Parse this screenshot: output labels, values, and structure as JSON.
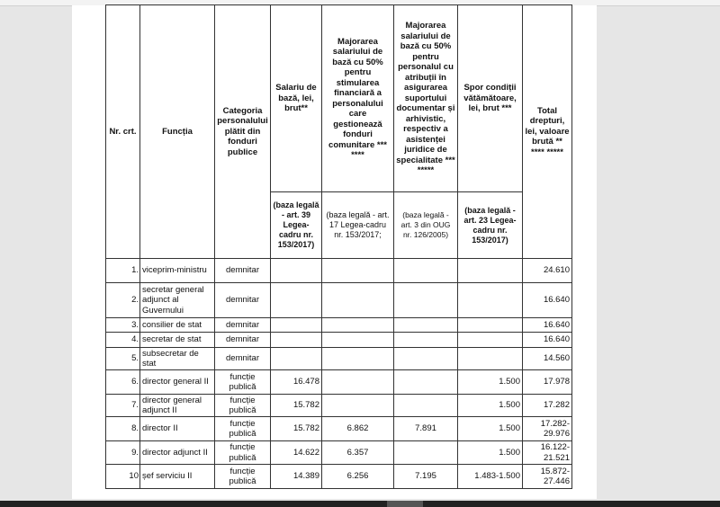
{
  "table": {
    "headers": {
      "nr": "Nr. crt.",
      "functia": "Funcția",
      "categoria": "Categoria personalului plătit din fonduri publice",
      "salariu": "Salariu de bază, lei, brut**",
      "majorare_fonduri": "Majorarea salariului de bază cu 50% pentru stimularea financiară a personalului care gestionează fonduri comunitare *** ****",
      "majorare_arhiva": "Majorarea salariului de bază cu 50% pentru personalul cu atribuții în asigurarea suportului documentar și arhivistic, respectiv a asistenței juridice de specialitate *** *****",
      "spor": "Spor condiții vătămătoare, lei, brut ***",
      "total": "Total drepturi, lei, valoare brută ** **** *****"
    },
    "legal_basis": {
      "salariu": "(baza legală - art. 39 Legea-cadru nr. 153/2017)",
      "majorare_fonduri": "(baza legală - art. 17 Legea-cadru nr. 153/2017;",
      "majorare_arhiva": "(baza legală - art. 3 din OUG nr. 126/2005)",
      "spor": "(baza legală - art. 23 Legea-cadru nr. 153/2017)"
    },
    "rows": [
      {
        "nr": "1.",
        "functia": "viceprim-ministru",
        "categoria": "demnitar",
        "salariu": "",
        "maj1": "",
        "maj2": "",
        "spor": "",
        "total": "24.610"
      },
      {
        "nr": "2.",
        "functia": "secretar general adjunct al Guvernului",
        "categoria": "demnitar",
        "salariu": "",
        "maj1": "",
        "maj2": "",
        "spor": "",
        "total": "16.640"
      },
      {
        "nr": "3.",
        "functia": "consilier de stat",
        "categoria": "demnitar",
        "salariu": "",
        "maj1": "",
        "maj2": "",
        "spor": "",
        "total": "16.640"
      },
      {
        "nr": "4.",
        "functia": "secretar de stat",
        "categoria": "demnitar",
        "salariu": "",
        "maj1": "",
        "maj2": "",
        "spor": "",
        "total": "16.640"
      },
      {
        "nr": "5.",
        "functia": "subsecretar de stat",
        "categoria": "demnitar",
        "salariu": "",
        "maj1": "",
        "maj2": "",
        "spor": "",
        "total": "14.560"
      },
      {
        "nr": "6.",
        "functia": "director general II",
        "categoria": "funcție publică",
        "salariu": "16.478",
        "maj1": "",
        "maj2": "",
        "spor": "1.500",
        "total": "17.978"
      },
      {
        "nr": "7.",
        "functia": "director general adjunct II",
        "categoria": "funcție publică",
        "salariu": "15.782",
        "maj1": "",
        "maj2": "",
        "spor": "1.500",
        "total": "17.282"
      },
      {
        "nr": "8.",
        "functia": "director II",
        "categoria": "funcție publică",
        "salariu": "15.782",
        "maj1": "6.862",
        "maj2": "7.891",
        "spor": "1.500",
        "total": "17.282-29.976"
      },
      {
        "nr": "9.",
        "functia": "director adjunct II",
        "categoria": "funcție publică",
        "salariu": "14.622",
        "maj1": "6.357",
        "maj2": "",
        "spor": "1.500",
        "total": "16.122-21.521"
      },
      {
        "nr": "10",
        "functia": "șef serviciu II",
        "categoria": "funcție publică",
        "salariu": "14.389",
        "maj1": "6.256",
        "maj2": "7.195",
        "spor": "1.483-1.500",
        "total": "15.872-27.446"
      }
    ]
  }
}
